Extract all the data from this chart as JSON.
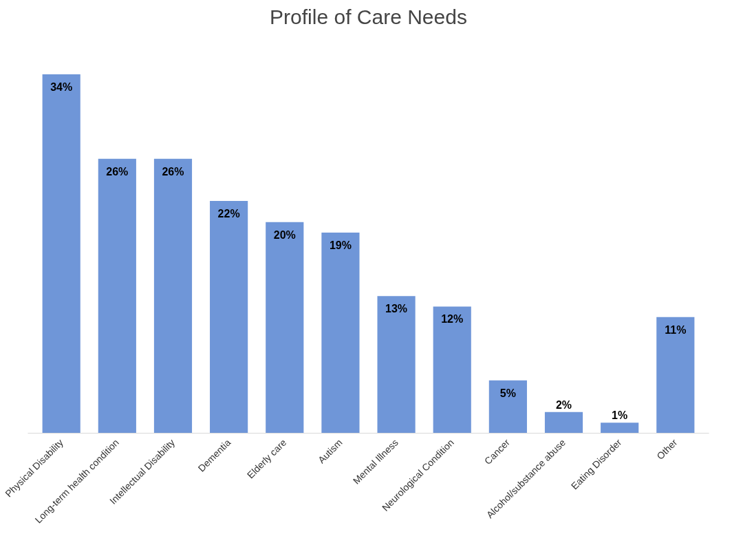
{
  "chart_data": {
    "type": "bar",
    "title": "Profile of Care Needs",
    "categories": [
      "Physical Disability",
      "Long-term health condition",
      "Intellectual Disability",
      "Dementia",
      "Elderly care",
      "Autism",
      "Mental Illness",
      "Neurological Condition",
      "Cancer",
      "Alcohol/substance abuse",
      "Eating Disorder",
      "Other"
    ],
    "values": [
      34,
      26,
      26,
      22,
      20,
      19,
      13,
      12,
      5,
      2,
      1,
      11
    ],
    "value_labels": [
      "34%",
      "26%",
      "26%",
      "22%",
      "20%",
      "19%",
      "13%",
      "12%",
      "5%",
      "2%",
      "1%",
      "11%"
    ],
    "color": "#6f96d8"
  }
}
